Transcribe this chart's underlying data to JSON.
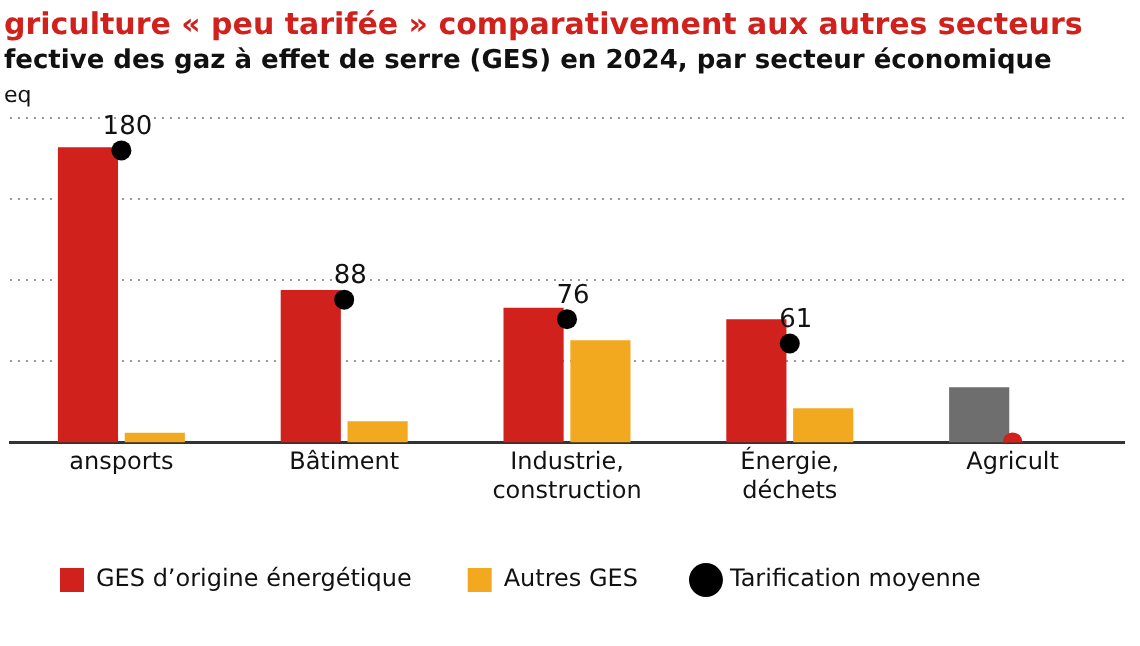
{
  "chart_data": {
    "type": "bar",
    "title": "griculture « peu tarifée » comparativement aux autres secteurs",
    "subtitle": "fective des gaz à effet de serre (GES) en 2024, par secteur économique",
    "ylabel": "eq",
    "categories": [
      "ansports",
      "Bâtiment",
      "Industrie, construction",
      "Énergie, déchets",
      "Agricult"
    ],
    "ylim": [
      0,
      200
    ],
    "yticks": [
      {
        "value": 50,
        "label": null
      },
      {
        "value": 100,
        "label": null
      },
      {
        "value": 150,
        "label": null
      },
      {
        "value": 200,
        "label": null
      }
    ],
    "grid": "y",
    "tick_labels": "x",
    "series": [
      {
        "name": "GES d’origine énergétique",
        "color": "#d0211c",
        "colors": [
          "#d0211c",
          "#d0211c",
          "#d0211c",
          "#d0211c",
          "#6e6e6e"
        ],
        "values": [
          182,
          94,
          83,
          76,
          34
        ]
      },
      {
        "name": "Autres GES",
        "color": "#f2a91f",
        "values": [
          6,
          13,
          63,
          21,
          null
        ]
      },
      {
        "name": "Tarification moyenne",
        "type": "scatter",
        "marker": "circle",
        "color": "#000000",
        "colors": [
          "#000000",
          "#000000",
          "#000000",
          "#000000",
          "#d0211c"
        ],
        "values": [
          180,
          88,
          76,
          61,
          0
        ],
        "value_labels": [
          "180",
          "88",
          "76",
          "61",
          null
        ]
      }
    ],
    "legend": "bottom"
  }
}
